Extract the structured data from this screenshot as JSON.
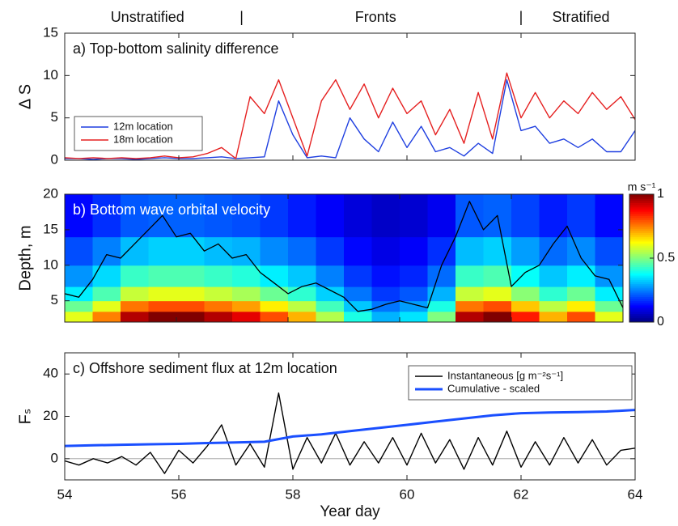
{
  "chart_data": [
    {
      "type": "line",
      "title": "a) Top-bottom salinity difference",
      "ylabel": "Δ S",
      "annotations": [
        {
          "text": "Unstratified",
          "x": 55.45
        },
        {
          "text": "|",
          "x": 57.1
        },
        {
          "text": "Fronts",
          "x": 59.45
        },
        {
          "text": "|",
          "x": 62.0
        },
        {
          "text": "Stratified",
          "x": 63.05
        }
      ],
      "x": [
        54,
        54.25,
        54.5,
        54.75,
        55,
        55.25,
        55.5,
        55.75,
        56,
        56.25,
        56.5,
        56.75,
        57,
        57.25,
        57.5,
        57.75,
        58,
        58.25,
        58.5,
        58.75,
        59,
        59.25,
        59.5,
        59.75,
        60,
        60.25,
        60.5,
        60.75,
        61,
        61.25,
        61.5,
        61.75,
        62,
        62.25,
        62.5,
        62.75,
        63,
        63.25,
        63.5,
        63.75,
        64
      ],
      "series": [
        {
          "name": "12m location",
          "color": "#1f3fe0",
          "values": [
            0.2,
            0.2,
            0.1,
            0.2,
            0.2,
            0.1,
            0.2,
            0.3,
            0.2,
            0.2,
            0.3,
            0.4,
            0.2,
            0.3,
            0.4,
            7,
            3,
            0.3,
            0.5,
            0.3,
            5,
            2.5,
            1,
            4.5,
            1.5,
            4,
            1,
            1.5,
            0.5,
            2,
            0.8,
            9.5,
            3.5,
            4,
            2,
            2.5,
            1.5,
            2.5,
            1,
            1,
            3.5
          ]
        },
        {
          "name": "18m location",
          "color": "#e52020",
          "values": [
            0.3,
            0.2,
            0.3,
            0.2,
            0.3,
            0.2,
            0.3,
            0.5,
            0.3,
            0.4,
            0.8,
            1.5,
            0.2,
            7.5,
            5.5,
            9.5,
            5,
            0.5,
            7,
            9.5,
            6,
            9,
            5,
            8.5,
            5.5,
            7,
            3,
            6,
            2,
            8,
            2.5,
            10.3,
            5,
            8,
            5,
            7,
            5.5,
            8,
            6,
            7.5,
            4.8
          ]
        }
      ],
      "xlim": [
        54,
        64
      ],
      "xticks": [
        54,
        56,
        58,
        60,
        62,
        64
      ],
      "xtick_labels": false,
      "ylim": [
        0,
        15
      ],
      "yticks": [
        0,
        5,
        10,
        15
      ],
      "legend": "lower left"
    },
    {
      "type": "heatmap",
      "title": "b) Bottom wave orbital velocity",
      "ylabel": "Depth, m",
      "x_edges": [
        54,
        54.5,
        55,
        55.5,
        56,
        56.5,
        57,
        57.5,
        58,
        58.5,
        59,
        59.5,
        60,
        60.5,
        61,
        61.5,
        62,
        62.5,
        63,
        63.5,
        64
      ],
      "depth_edges": [
        2,
        3.5,
        5,
        7,
        10,
        14,
        20
      ],
      "values": [
        [
          0.6,
          0.48,
          0.36,
          0.27,
          0.2,
          0.13
        ],
        [
          0.75,
          0.6,
          0.45,
          0.34,
          0.25,
          0.17
        ],
        [
          0.95,
          0.76,
          0.57,
          0.43,
          0.31,
          0.21
        ],
        [
          1,
          0.8,
          0.6,
          0.45,
          0.33,
          0.22
        ],
        [
          1,
          0.8,
          0.6,
          0.45,
          0.33,
          0.22
        ],
        [
          0.95,
          0.76,
          0.57,
          0.43,
          0.31,
          0.21
        ],
        [
          0.9,
          0.72,
          0.54,
          0.41,
          0.3,
          0.2
        ],
        [
          0.8,
          0.64,
          0.48,
          0.36,
          0.26,
          0.18
        ],
        [
          0.7,
          0.56,
          0.42,
          0.32,
          0.23,
          0.15
        ],
        [
          0.55,
          0.44,
          0.33,
          0.25,
          0.18,
          0.12
        ],
        [
          0.4,
          0.32,
          0.24,
          0.18,
          0.13,
          0.09
        ],
        [
          0.3,
          0.24,
          0.18,
          0.14,
          0.1,
          0.07
        ],
        [
          0.35,
          0.28,
          0.21,
          0.16,
          0.12,
          0.08
        ],
        [
          0.5,
          0.4,
          0.3,
          0.23,
          0.17,
          0.11
        ],
        [
          0.95,
          0.76,
          0.57,
          0.43,
          0.31,
          0.21
        ],
        [
          1,
          0.8,
          0.6,
          0.45,
          0.33,
          0.22
        ],
        [
          0.85,
          0.68,
          0.51,
          0.38,
          0.28,
          0.19
        ],
        [
          0.7,
          0.56,
          0.42,
          0.32,
          0.23,
          0.15
        ],
        [
          0.8,
          0.64,
          0.48,
          0.36,
          0.26,
          0.18
        ],
        [
          0.6,
          0.48,
          0.36,
          0.27,
          0.2,
          0.13
        ]
      ],
      "line": {
        "color": "#000000",
        "x": [
          54,
          54.25,
          54.5,
          54.75,
          55,
          55.25,
          55.5,
          55.75,
          56,
          56.25,
          56.5,
          56.75,
          57,
          57.25,
          57.5,
          57.75,
          58,
          58.25,
          58.5,
          58.75,
          59,
          59.25,
          59.5,
          59.75,
          60,
          60.25,
          60.5,
          60.75,
          61,
          61.25,
          61.5,
          61.75,
          62,
          62.25,
          62.5,
          62.75,
          63,
          63.25,
          63.5,
          63.75,
          64
        ],
        "values": [
          6,
          5.5,
          8,
          11.5,
          11,
          13,
          15,
          17,
          14,
          14.5,
          12,
          13,
          11,
          11.5,
          9,
          7.5,
          6,
          7,
          7.5,
          6.5,
          5.5,
          3.5,
          3.8,
          4.5,
          5,
          4.5,
          4,
          10,
          14,
          19,
          15,
          17,
          7,
          9,
          10,
          13,
          15.5,
          11,
          8.5,
          8,
          4
        ]
      },
      "clim": [
        0,
        1
      ],
      "cticks": [
        0,
        0.5,
        1
      ],
      "colorbar_label": "m s⁻¹",
      "xlim": [
        54,
        64
      ],
      "xticks": [
        54,
        56,
        58,
        60,
        62,
        64
      ],
      "xtick_labels": false,
      "ylim": [
        2,
        20
      ],
      "yticks": [
        5,
        10,
        15,
        20
      ]
    },
    {
      "type": "line",
      "title": "c) Offshore sediment flux at 12m location",
      "ylabel": "Fₛ",
      "xlabel": "Year day",
      "series": [
        {
          "name": "Instantaneous [g m⁻²s⁻¹]",
          "color": "#000000",
          "x": [
            54,
            54.25,
            54.5,
            54.75,
            55,
            55.25,
            55.5,
            55.75,
            56,
            56.25,
            56.5,
            56.75,
            57,
            57.25,
            57.5,
            57.75,
            58,
            58.25,
            58.5,
            58.75,
            59,
            59.25,
            59.5,
            59.75,
            60,
            60.25,
            60.5,
            60.75,
            61,
            61.25,
            61.5,
            61.75,
            62,
            62.25,
            62.5,
            62.75,
            63,
            63.25,
            63.5,
            63.75,
            64
          ],
          "values": [
            -1,
            -3,
            0,
            -2,
            1,
            -3,
            3,
            -7,
            4,
            -2,
            6,
            16,
            -3,
            7,
            -4,
            31,
            -5,
            10,
            -2,
            12,
            -3,
            8,
            -2,
            10,
            -3,
            12,
            -2,
            9,
            -5,
            10,
            -3,
            13,
            -4,
            8,
            -3,
            10,
            -2,
            9,
            -3,
            4,
            5
          ]
        },
        {
          "name": "Cumulative - scaled",
          "color": "#1a4fff",
          "x": [
            54,
            54.5,
            55,
            55.5,
            56,
            56.5,
            57,
            57.5,
            58,
            58.5,
            59,
            59.5,
            60,
            60.5,
            61,
            61.5,
            62,
            62.5,
            63,
            63.5,
            64
          ],
          "values": [
            6,
            6.3,
            6.6,
            6.8,
            7,
            7.4,
            7.7,
            8,
            10.5,
            11.5,
            13,
            14.5,
            16,
            17.5,
            19,
            20.5,
            21.5,
            21.8,
            22,
            22.3,
            23
          ]
        }
      ],
      "xlim": [
        54,
        64
      ],
      "xticks": [
        54,
        56,
        58,
        60,
        62,
        64
      ],
      "xtick_labels": true,
      "ylim": [
        -10,
        50
      ],
      "yticks": [
        0,
        20,
        40
      ],
      "legend": "upper right",
      "zero_line": true
    }
  ]
}
